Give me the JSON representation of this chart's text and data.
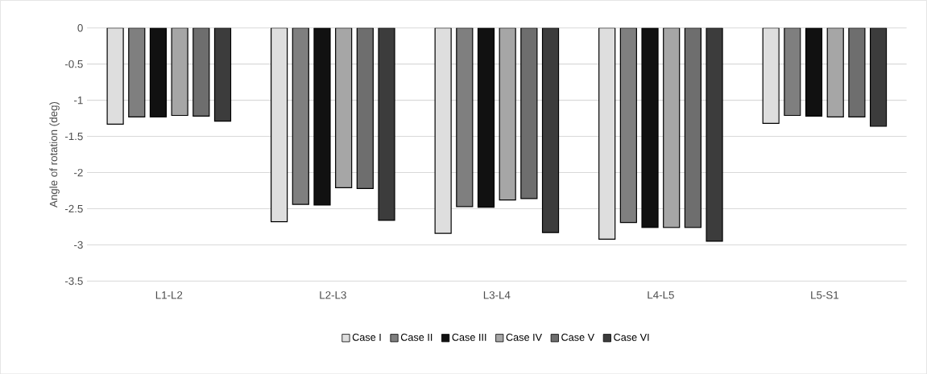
{
  "chart_data": {
    "type": "bar",
    "ylabel": "Angle of rotation (deg)",
    "categories": [
      "L1-L2",
      "L2-L3",
      "L3-L4",
      "L4-L5",
      "L5-S1"
    ],
    "series": [
      {
        "name": "Case I",
        "color": "#dedede",
        "values": [
          -1.33,
          -2.68,
          -2.84,
          -2.92,
          -1.32
        ]
      },
      {
        "name": "Case II",
        "color": "#7f7f7f",
        "values": [
          -1.23,
          -2.44,
          -2.47,
          -2.69,
          -1.21
        ]
      },
      {
        "name": "Case III",
        "color": "#111111",
        "values": [
          -1.23,
          -2.45,
          -2.48,
          -2.76,
          -1.22
        ]
      },
      {
        "name": "Case IV",
        "color": "#a6a6a6",
        "values": [
          -1.21,
          -2.21,
          -2.38,
          -2.76,
          -1.23
        ]
      },
      {
        "name": "Case V",
        "color": "#6e6e6e",
        "values": [
          -1.22,
          -2.22,
          -2.36,
          -2.76,
          -1.23
        ]
      },
      {
        "name": "Case VI",
        "color": "#3c3c3c",
        "values": [
          -1.29,
          -2.66,
          -2.83,
          -2.95,
          -1.36
        ]
      }
    ],
    "ylim": [
      -3.5,
      0
    ],
    "yticks": [
      0,
      -0.5,
      -1,
      -1.5,
      -2,
      -2.5,
      -3,
      -3.5
    ],
    "grid": "y",
    "legend": "bottom"
  }
}
